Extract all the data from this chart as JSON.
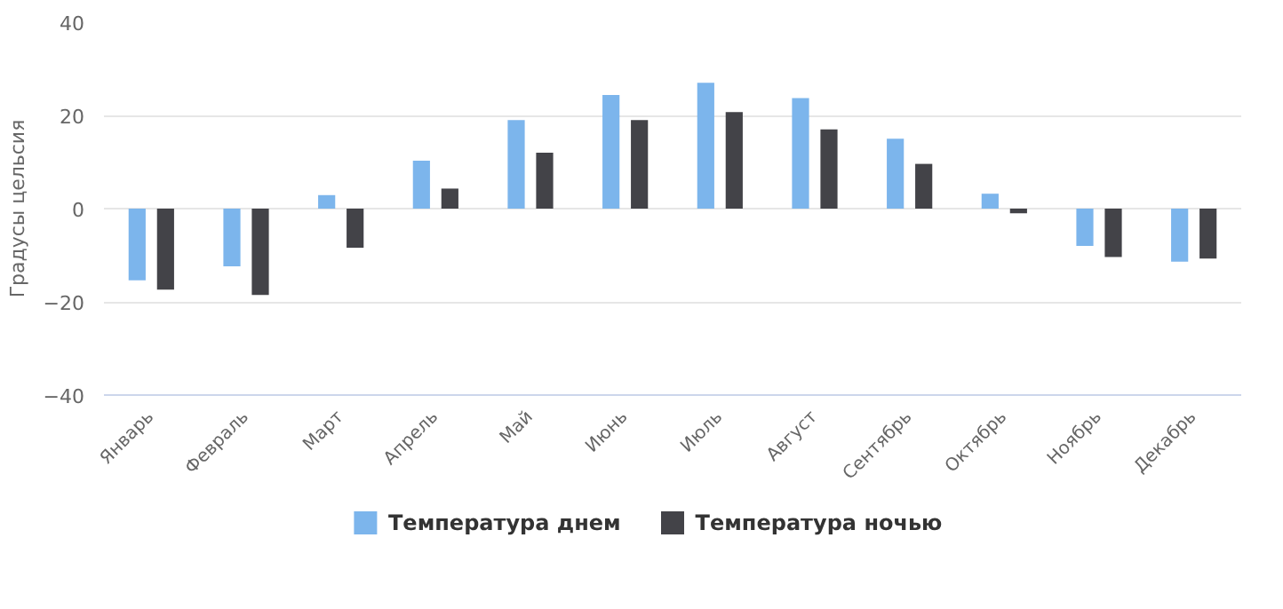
{
  "chart_data": {
    "type": "bar",
    "ylabel": "Градусы цельсия",
    "categories": [
      "Январь",
      "Февраль",
      "Март",
      "Апрель",
      "Май",
      "Июнь",
      "Июль",
      "Август",
      "Сентябрь",
      "Октябрь",
      "Ноябрь",
      "Декабрь"
    ],
    "series": [
      {
        "name": "Температура днем",
        "color": "#7cb5ec",
        "values": [
          -15.4,
          -12.4,
          2.9,
          10.3,
          19.0,
          24.4,
          27.0,
          23.7,
          15.0,
          3.2,
          -8.0,
          -11.4
        ]
      },
      {
        "name": "Температура ночью",
        "color": "#434348",
        "values": [
          -17.4,
          -18.5,
          -8.4,
          4.3,
          12.0,
          19.0,
          20.7,
          17.0,
          9.6,
          -1.0,
          -10.4,
          -10.7
        ]
      }
    ],
    "ylim": [
      -40,
      40
    ],
    "yticks": [
      -40,
      -20,
      0,
      20,
      40
    ],
    "grid": "y",
    "legend": "bottom"
  }
}
